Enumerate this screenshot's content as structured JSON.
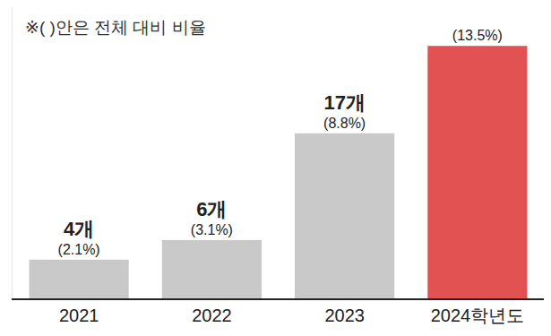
{
  "chart_data": {
    "type": "bar",
    "note": "※( )안은 전체 대비 비율",
    "categories": [
      "2021",
      "2022",
      "2023",
      "2024학년도"
    ],
    "values": [
      4,
      6,
      17,
      26
    ],
    "value_labels": [
      "4개",
      "6개",
      "17개",
      null
    ],
    "shares": [
      2.1,
      3.1,
      8.8,
      13.5
    ],
    "share_labels": [
      "(2.1%)",
      "(3.1%)",
      "(8.8%)",
      "(13.5%)"
    ],
    "colors": [
      "#c9c9c9",
      "#c9c9c9",
      "#c9c9c9",
      "#e25252"
    ],
    "ylim": [
      0,
      30
    ],
    "tick_labels": "x",
    "data_labels": true
  }
}
